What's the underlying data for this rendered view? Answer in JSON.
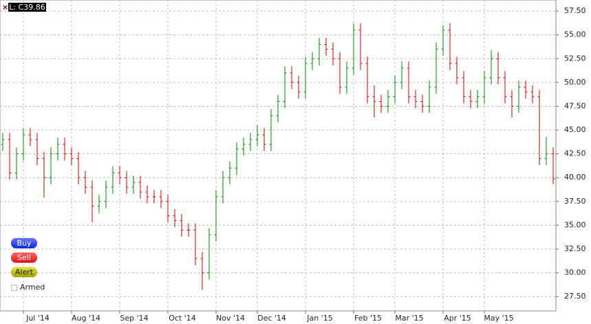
{
  "chart_data": {
    "type": "ohlc",
    "annotation": "L: C39.86",
    "categories": [
      null,
      null,
      null,
      "Jul '14",
      null,
      null,
      null,
      null,
      null,
      null,
      "Aug '14",
      null,
      null,
      null,
      null,
      null,
      null,
      "Sep '14",
      null,
      null,
      null,
      null,
      null,
      null,
      "Oct '14",
      null,
      null,
      null,
      null,
      null,
      null,
      "Nov '14",
      null,
      null,
      null,
      null,
      null,
      "Dec '14",
      null,
      null,
      null,
      null,
      null,
      null,
      "Jan '15",
      null,
      null,
      null,
      null,
      null,
      null,
      "Feb '15",
      null,
      null,
      null,
      null,
      null,
      "Mar '15",
      null,
      null,
      null,
      null,
      null,
      null,
      "Apr '15",
      null,
      null,
      null,
      null,
      null,
      "May '15",
      null,
      null,
      null,
      null,
      null,
      null,
      null,
      null,
      null,
      null
    ],
    "open": [
      43.5,
      44,
      40.5,
      42.5,
      44.5,
      44,
      42,
      40,
      42.5,
      43.5,
      42.5,
      42,
      40,
      39,
      37,
      37.5,
      39,
      40.5,
      40,
      39,
      39.5,
      38.5,
      38,
      38,
      37.5,
      36,
      35.5,
      34.5,
      34.5,
      31.5,
      30,
      34,
      38,
      40,
      41,
      43,
      43.5,
      44,
      44.5,
      43.5,
      46.5,
      48,
      51,
      50,
      49,
      52,
      52.5,
      54,
      53.5,
      52.5,
      49.5,
      51.5,
      55.5,
      52,
      48.5,
      48,
      47.5,
      48.5,
      50,
      51.5,
      48.5,
      48,
      47.5,
      49.5,
      53.5,
      55.5,
      52,
      50.5,
      48.5,
      48,
      48.5,
      50.5,
      52.5,
      50.5,
      48.5,
      47.5,
      49.5,
      49,
      48.5,
      42,
      42.5
    ],
    "high": [
      44.7,
      44.7,
      43.2,
      45.2,
      45.2,
      44.7,
      42.7,
      43.2,
      44.2,
      44.2,
      43.2,
      42.7,
      40.7,
      39.7,
      38.2,
      39.7,
      41.2,
      41.2,
      40.7,
      40.2,
      40.2,
      39.2,
      38.7,
      38.7,
      38.2,
      36.7,
      36.2,
      35.2,
      35.2,
      32.2,
      34.7,
      38.7,
      40.7,
      41.7,
      43.7,
      44.2,
      44.7,
      45.5,
      45.2,
      47.2,
      48.7,
      51.7,
      51.7,
      50.7,
      52.7,
      53.2,
      54.7,
      54.7,
      54.2,
      53.2,
      52.2,
      56.2,
      56.2,
      52.7,
      49.7,
      48.7,
      49.2,
      50.7,
      52.2,
      52.2,
      49.2,
      48.7,
      50.2,
      54.2,
      56,
      56.2,
      52.7,
      51.2,
      49.2,
      49.2,
      51.2,
      53.4,
      53.2,
      51.2,
      49.2,
      50.2,
      50.2,
      49.7,
      49.2,
      44.3,
      43.2
    ],
    "low": [
      42.8,
      39.8,
      39.8,
      41.8,
      43.3,
      41.3,
      37.9,
      39.3,
      41.8,
      41.8,
      41.3,
      39.3,
      38.3,
      35.3,
      36.3,
      36.8,
      38.3,
      39.3,
      38.3,
      38.3,
      37.8,
      37.3,
      37.3,
      36.8,
      35.3,
      34.8,
      33.8,
      33.8,
      30.8,
      28.2,
      29.3,
      33.3,
      37.3,
      39.3,
      40.3,
      42.3,
      42.8,
      43.3,
      42.8,
      42.8,
      45.8,
      47.3,
      49.3,
      48.3,
      48.3,
      51.3,
      51.8,
      52.8,
      51.8,
      48.8,
      48.8,
      50.8,
      51.3,
      47.8,
      46.3,
      46.8,
      46.8,
      47.8,
      49.3,
      47.8,
      47.3,
      46.8,
      46.8,
      48.8,
      52.8,
      51.3,
      49.8,
      47.8,
      47.3,
      47.3,
      47.8,
      49.8,
      49.8,
      47.8,
      46.3,
      46.8,
      48.3,
      47.8,
      41.3,
      41.3,
      39.3
    ],
    "close": [
      44,
      40.5,
      42.5,
      44.5,
      44,
      42,
      40,
      42.5,
      43.5,
      42.5,
      42,
      40,
      39,
      37,
      37.5,
      39,
      40.5,
      40,
      39,
      39.5,
      38.5,
      38,
      38,
      37.5,
      36,
      35.5,
      34.5,
      34.5,
      31.5,
      30,
      34,
      38,
      40,
      41,
      43,
      43.5,
      44,
      44.5,
      43.5,
      46.5,
      48,
      51,
      50,
      49,
      52,
      52.5,
      54,
      53.5,
      52.5,
      49.5,
      51.5,
      55.5,
      52,
      48.5,
      48,
      47.5,
      48.5,
      50,
      51.5,
      48.5,
      48,
      47.5,
      49.5,
      53.5,
      55.5,
      52,
      50.5,
      48.5,
      48,
      48.5,
      50.5,
      52.5,
      50.5,
      48.5,
      47.5,
      49.5,
      49,
      48.5,
      42,
      42.5,
      39.86
    ],
    "up_color": "#008000",
    "down_color": "#cc0000",
    "ylim": [
      26,
      58.66
    ],
    "yticks": [
      {
        "value": 27.5,
        "label": "27.50"
      },
      {
        "value": 30,
        "label": "30.00"
      },
      {
        "value": 32.5,
        "label": "32.50"
      },
      {
        "value": 35,
        "label": "35.00"
      },
      {
        "value": 37.5,
        "label": "37.50"
      },
      {
        "value": 40,
        "label": "40.00"
      },
      {
        "value": 42.5,
        "label": "42.50"
      },
      {
        "value": 45,
        "label": "45.00"
      },
      {
        "value": 47.5,
        "label": "47.50"
      },
      {
        "value": 50,
        "label": "50.00"
      },
      {
        "value": 52.5,
        "label": "52.50"
      },
      {
        "value": 55,
        "label": "55.00"
      },
      {
        "value": 57.5,
        "label": "57.50"
      }
    ],
    "grid": true
  },
  "controls": {
    "buttons": [
      "Buy",
      "Sell",
      "Alert"
    ],
    "checkbox": "Armed"
  }
}
